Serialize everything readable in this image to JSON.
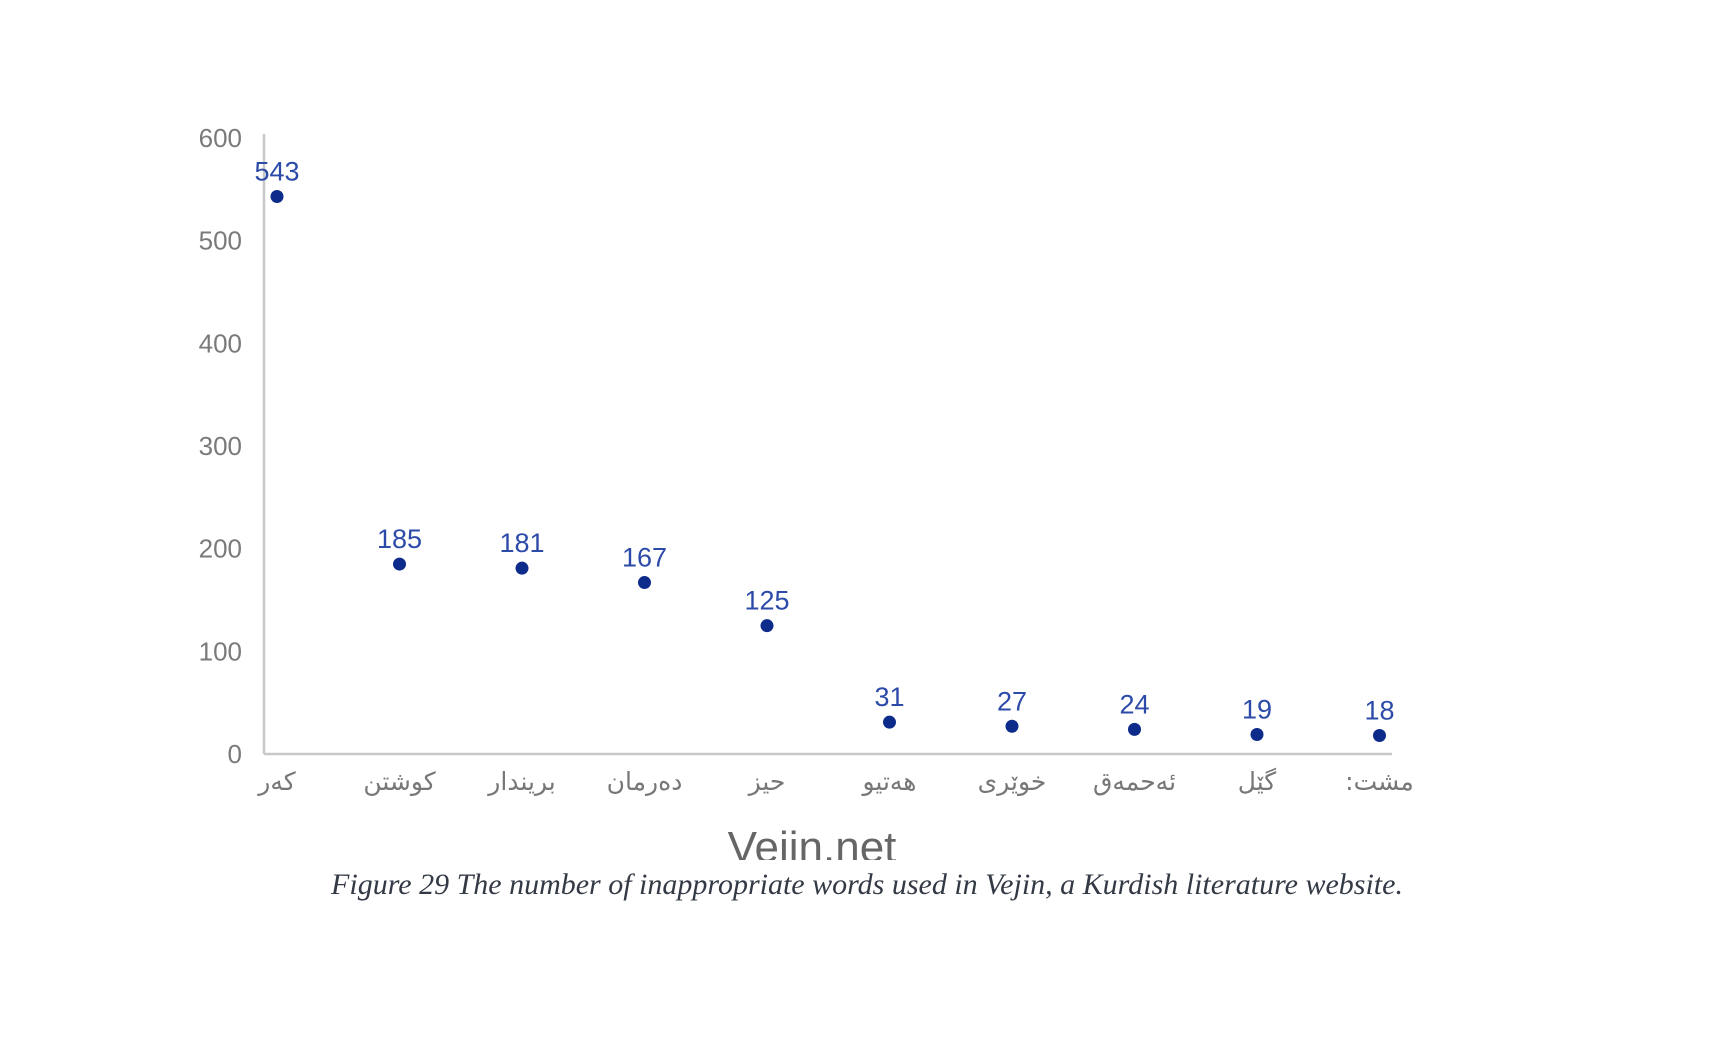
{
  "chart_data": {
    "type": "scatter",
    "categories": [
      "كەر",
      "كوشتن",
      "بريندار",
      "دەرمان",
      "حيز",
      "هەتيو",
      "خوێری",
      "ئەحمەق",
      "گێل",
      "مشت:"
    ],
    "values": [
      543,
      185,
      181,
      167,
      125,
      31,
      27,
      24,
      19,
      18
    ],
    "data_labels": [
      "543",
      "185",
      "181",
      "167",
      "125",
      "31",
      "27",
      "24",
      "19",
      "18"
    ],
    "title": "",
    "xlabel": "Vejin.net",
    "ylabel": "",
    "ylim": [
      0,
      600
    ],
    "yticks": [
      "0",
      "100",
      "200",
      "300",
      "400",
      "500",
      "600"
    ],
    "grid": false,
    "legend": "none",
    "colors": {
      "point": "#0d2b8a",
      "data_label": "#2c4aa8",
      "axis": "#c8c8c8",
      "tick_label": "#7a7a7a",
      "category_label": "#777777",
      "x_title": "#666666"
    }
  },
  "caption": "Figure 29 The number of inappropriate words used in Vejin, a Kurdish literature website."
}
